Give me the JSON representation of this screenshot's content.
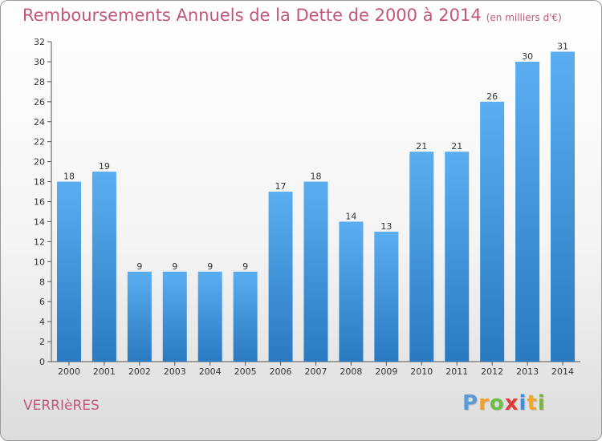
{
  "header": {
    "title": "Remboursements Annuels de la Dette de 2000 à 2014",
    "subtitle": "(en milliers d'€)"
  },
  "footer": {
    "commune": "VERRIèRES",
    "logo": [
      "P",
      "r",
      "o",
      "x",
      "i",
      "t",
      "i"
    ]
  },
  "colors": {
    "bar_light": "#5aaef0",
    "bar_dark": "#2a7ac2",
    "title": "#c2577a",
    "logo": [
      "#5b9bd5",
      "#f0a030",
      "#6cbf3f",
      "#e53935",
      "#3c8dde",
      "#f5a623",
      "#7cb342"
    ]
  },
  "chart_data": {
    "type": "bar",
    "title": "Remboursements Annuels de la Dette de 2000 à 2014",
    "subtitle": "(en milliers d'€)",
    "categories": [
      "2000",
      "2001",
      "2002",
      "2003",
      "2004",
      "2005",
      "2006",
      "2007",
      "2008",
      "2009",
      "2010",
      "2011",
      "2012",
      "2013",
      "2014"
    ],
    "values": [
      18,
      19,
      9,
      9,
      9,
      9,
      17,
      18,
      14,
      13,
      21,
      21,
      26,
      30,
      31
    ],
    "ylim": [
      0,
      32
    ],
    "yticks": [
      0,
      2,
      4,
      6,
      8,
      10,
      12,
      14,
      16,
      18,
      20,
      22,
      24,
      26,
      28,
      30,
      32
    ],
    "grid": false,
    "xlabel": "",
    "ylabel": ""
  }
}
